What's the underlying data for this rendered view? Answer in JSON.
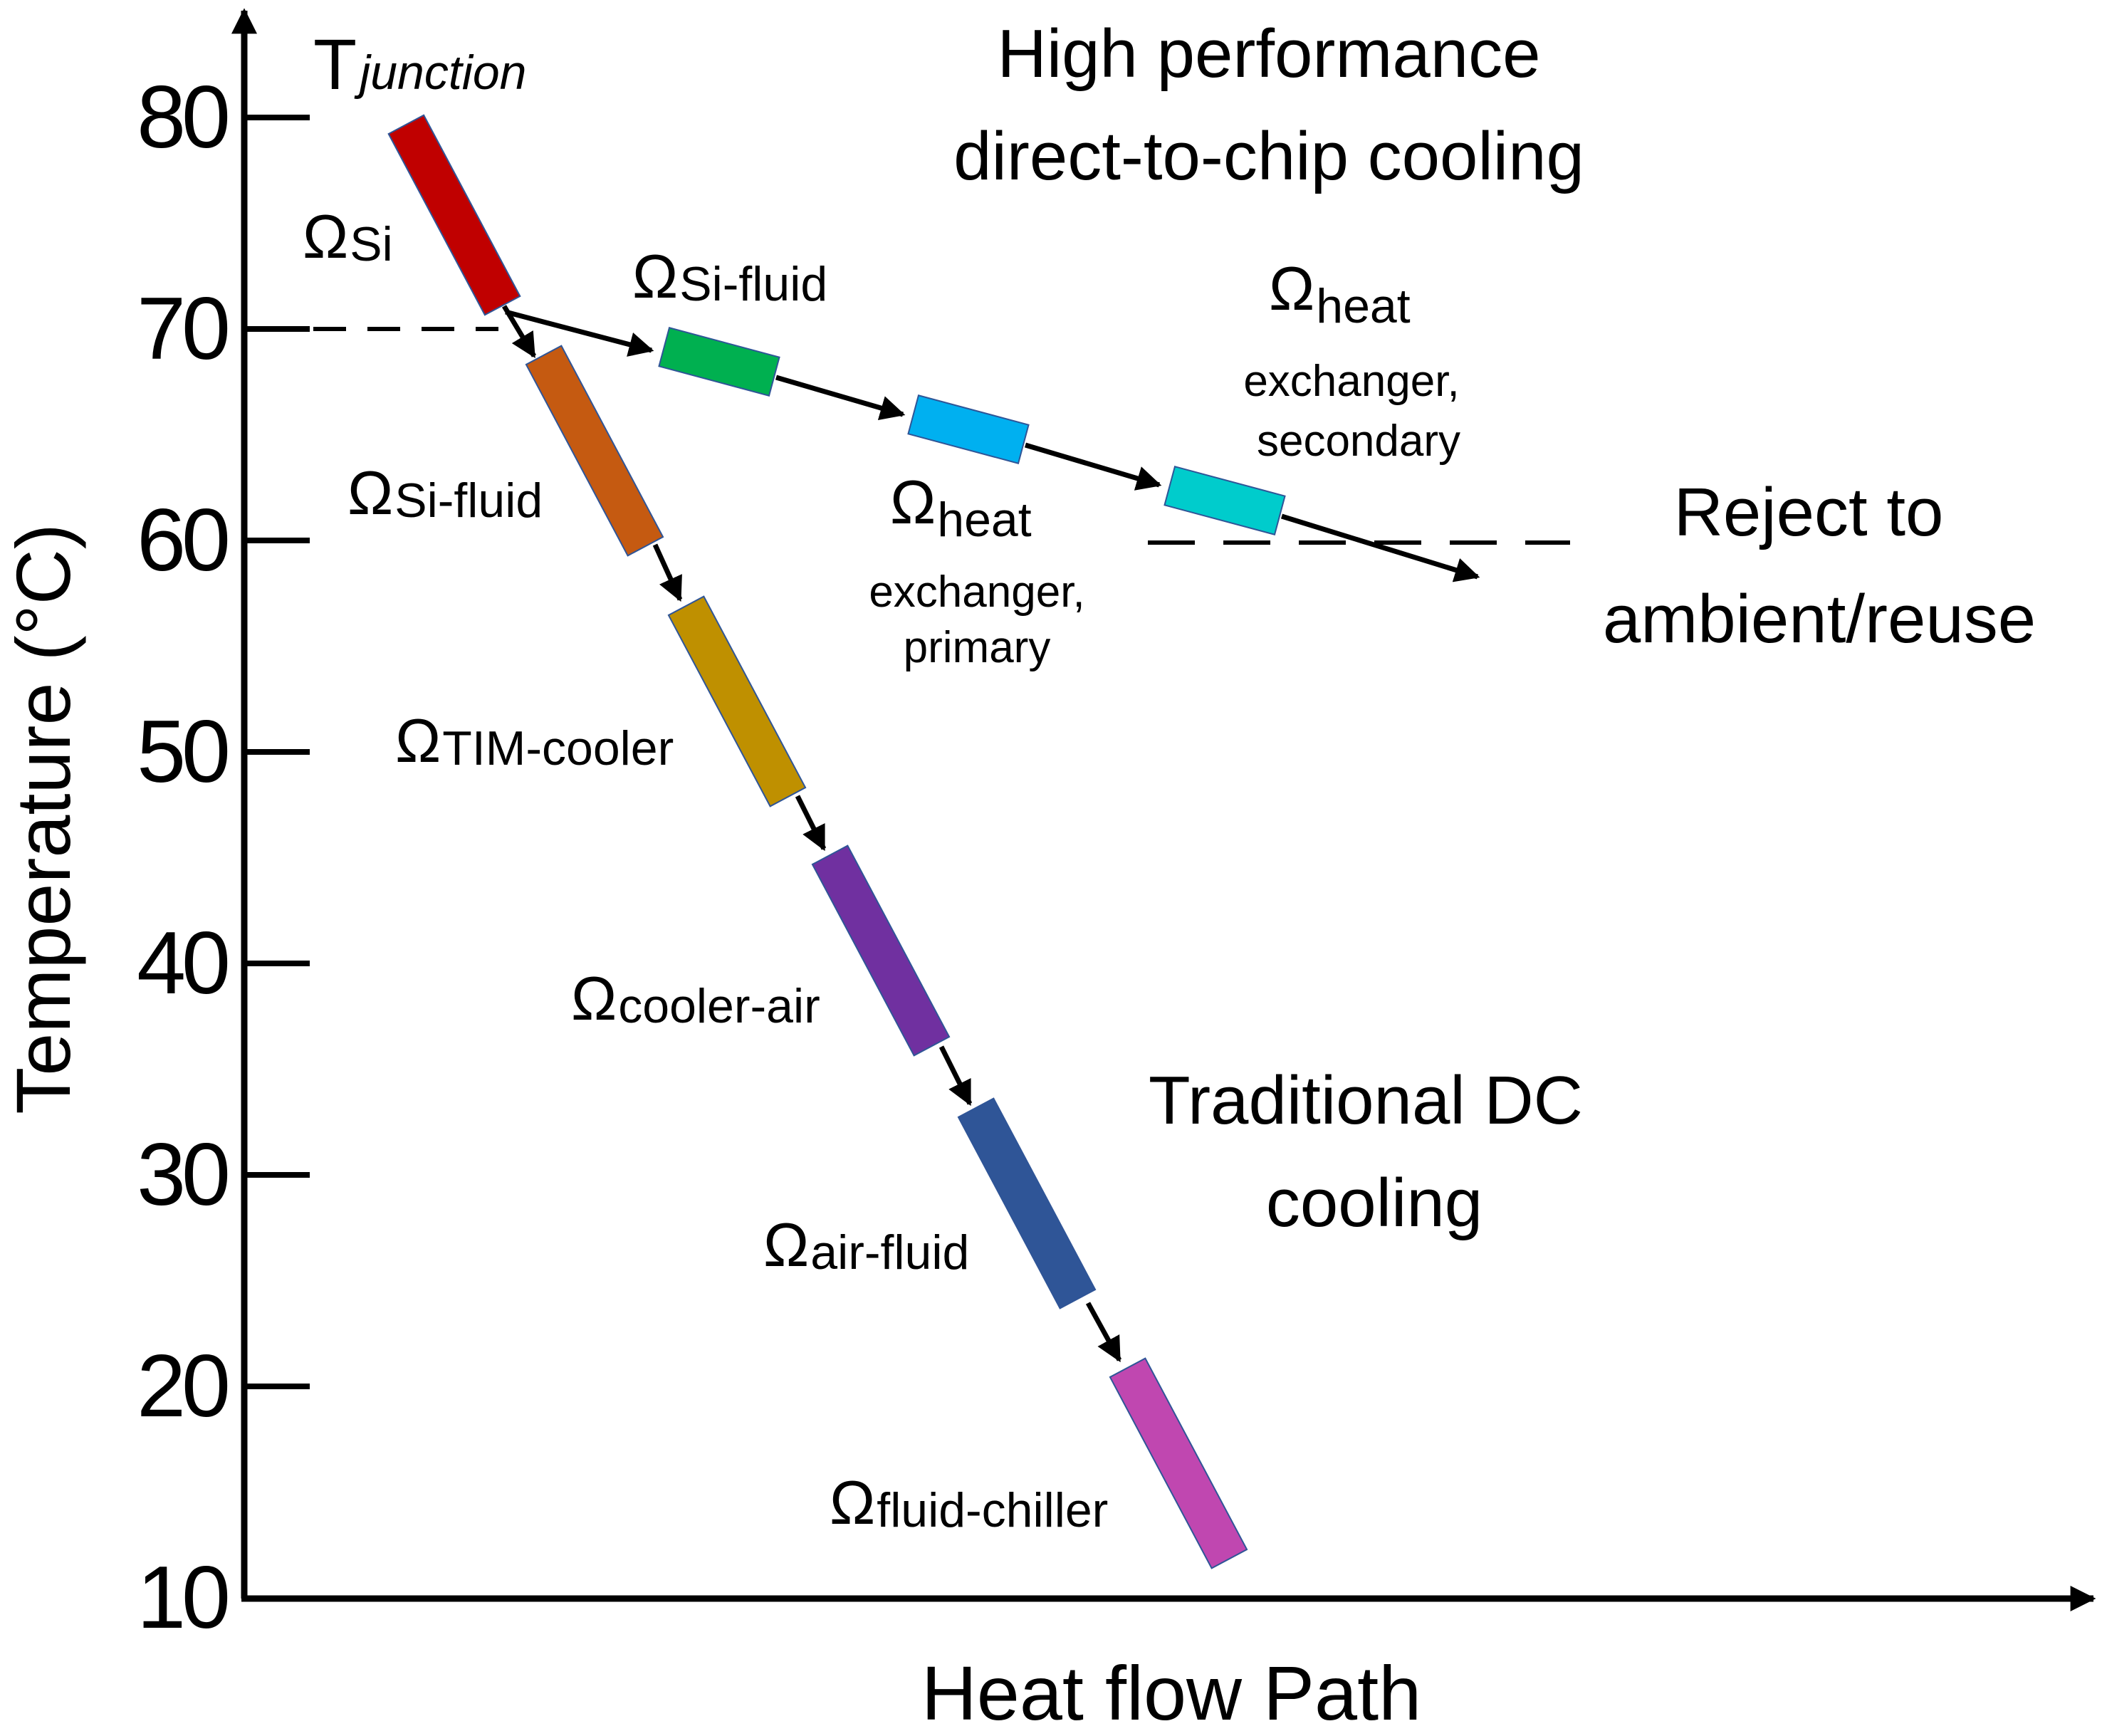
{
  "axes": {
    "y_title": "Temperature (°C)",
    "x_title": "Heat flow Path",
    "y_ticks": [
      "80",
      "70",
      "60",
      "50",
      "40",
      "30",
      "20",
      "10"
    ],
    "t_junction_main": "T",
    "t_junction_sub": "junction"
  },
  "labels": {
    "high_perf_line1": "High performance",
    "high_perf_line2": "direct-to-chip cooling",
    "traditional_line1": "Traditional DC",
    "traditional_line2": "cooling",
    "reject_line1": "Reject to",
    "reject_line2": "ambient/reuse"
  },
  "omega_symbol": "Ω",
  "traditional_path": [
    {
      "subscript": "Si",
      "color": "#c00000"
    },
    {
      "subscript": "Si-fluid",
      "color": "#c55a11"
    },
    {
      "subscript": "TIM-cooler",
      "color": "#bf9000"
    },
    {
      "subscript": "cooler-air",
      "color": "#7030a0"
    },
    {
      "subscript": "air-fluid",
      "color": "#2f5597"
    },
    {
      "subscript": "fluid-chiller",
      "color": "#c047b0"
    }
  ],
  "direct_path": [
    {
      "subscript": "Si-fluid",
      "color": "#00b050"
    },
    {
      "subscript": "heat",
      "note_line1": "exchanger,",
      "note_line2": "primary",
      "color": "#00b0f0"
    },
    {
      "subscript": "heat",
      "note_line1": "exchanger,",
      "note_line2": "secondary",
      "color": "#00cccc"
    }
  ]
}
